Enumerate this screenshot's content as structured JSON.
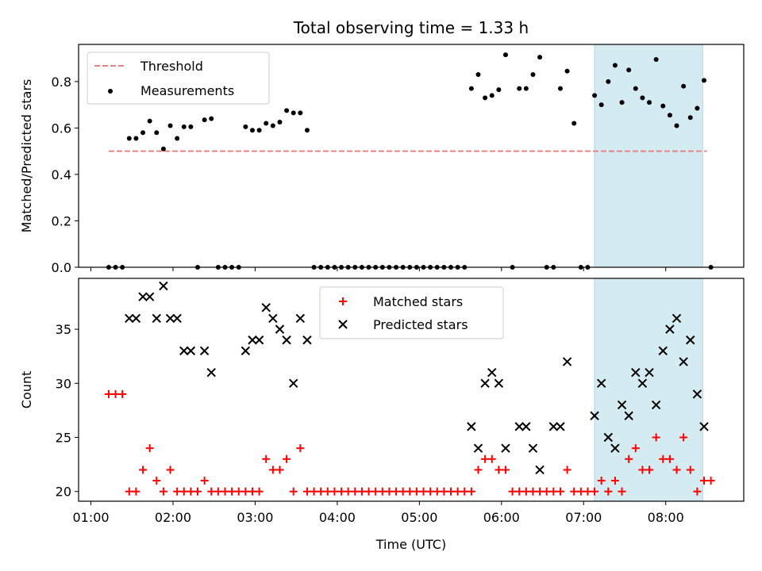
{
  "chart_data": [
    {
      "type": "scatter",
      "title": "Total observing time = 1.33 h",
      "xlabel": "",
      "ylabel": "Matched/Predicted stars",
      "xlim": [
        "00:51",
        "08:57"
      ],
      "ylim": [
        0,
        0.96
      ],
      "yticks": [
        "0.0",
        "0.2",
        "0.4",
        "0.6",
        "0.8"
      ],
      "ytick_values": [
        0,
        0.2,
        0.4,
        0.6,
        0.8
      ],
      "shaded_span": [
        "07:08",
        "08:27"
      ],
      "shade_color": "#d4ebf1",
      "legend": {
        "placement": "upper left",
        "entries": [
          "Threshold",
          "Measurements"
        ]
      },
      "series": [
        {
          "name": "Threshold",
          "style": "dashed-line",
          "color": "#f08080",
          "x": [
            "01:13",
            "08:30"
          ],
          "y": [
            0.5,
            0.5
          ]
        },
        {
          "name": "Measurements",
          "style": "dot",
          "color": "#000000",
          "x": [
            "01:13",
            "01:18",
            "01:23",
            "01:28",
            "01:33",
            "01:38",
            "01:43",
            "01:48",
            "01:53",
            "01:58",
            "02:03",
            "02:08",
            "02:13",
            "02:18",
            "02:23",
            "02:28",
            "02:33",
            "02:38",
            "02:43",
            "02:48",
            "02:53",
            "02:58",
            "03:03",
            "03:08",
            "03:13",
            "03:18",
            "03:23",
            "03:28",
            "03:33",
            "03:38",
            "03:43",
            "03:48",
            "03:53",
            "03:58",
            "04:03",
            "04:08",
            "04:13",
            "04:18",
            "04:23",
            "04:28",
            "04:33",
            "04:38",
            "04:43",
            "04:48",
            "04:53",
            "04:58",
            "05:03",
            "05:08",
            "05:13",
            "05:18",
            "05:23",
            "05:28",
            "05:33",
            "05:38",
            "05:43",
            "05:48",
            "05:53",
            "05:58",
            "06:03",
            "06:08",
            "06:13",
            "06:18",
            "06:23",
            "06:28",
            "06:33",
            "06:38",
            "06:43",
            "06:48",
            "06:53",
            "06:58",
            "07:03",
            "07:08",
            "07:13",
            "07:18",
            "07:23",
            "07:28",
            "07:33",
            "07:38",
            "07:43",
            "07:48",
            "07:53",
            "07:58",
            "08:03",
            "08:08",
            "08:13",
            "08:18",
            "08:23",
            "08:28",
            "08:33"
          ],
          "y": [
            0,
            0,
            0,
            0.555,
            0.555,
            0.58,
            0.63,
            0.58,
            0.51,
            0.61,
            0.555,
            0.605,
            0.605,
            0,
            0.635,
            0.64,
            0,
            0,
            0,
            0,
            0.605,
            0.59,
            0.59,
            0.62,
            0.61,
            0.625,
            0.675,
            0.665,
            0.665,
            0.59,
            0,
            0,
            0,
            0,
            0,
            0,
            0,
            0,
            0,
            0,
            0,
            0,
            0,
            0,
            0,
            0,
            0,
            0,
            0,
            0,
            0,
            0,
            0,
            0.77,
            0.83,
            0.73,
            0.74,
            0.765,
            0.915,
            0,
            0.77,
            0.77,
            0.83,
            0.905,
            0,
            0,
            0.77,
            0.845,
            0.62,
            0,
            0,
            0.74,
            0.7,
            0.8,
            0.87,
            0.71,
            0.85,
            0.77,
            0.73,
            0.71,
            0.895,
            0.695,
            0.655,
            0.61,
            0.78,
            0.645,
            0.685,
            0.805,
            0
          ]
        }
      ]
    },
    {
      "type": "scatter",
      "title": "",
      "xlabel": "Time (UTC)",
      "ylabel": "Count",
      "xlim": [
        "00:51",
        "08:57"
      ],
      "ylim": [
        19.1,
        39.7
      ],
      "yticks": [
        "20",
        "25",
        "30",
        "35"
      ],
      "ytick_values": [
        20,
        25,
        30,
        35
      ],
      "xticks": [
        "01:00",
        "02:00",
        "03:00",
        "04:00",
        "05:00",
        "06:00",
        "07:00",
        "08:00"
      ],
      "shaded_span": [
        "07:08",
        "08:27"
      ],
      "shade_color": "#d4ebf1",
      "legend": {
        "placement": "upper center",
        "entries": [
          "Matched stars",
          "Predicted stars"
        ]
      },
      "series": [
        {
          "name": "Matched stars",
          "style": "plus",
          "color": "#ff0000",
          "x": [
            "01:13",
            "01:18",
            "01:23",
            "01:28",
            "01:33",
            "01:38",
            "01:43",
            "01:48",
            "01:53",
            "01:58",
            "02:03",
            "02:08",
            "02:13",
            "02:18",
            "02:23",
            "02:28",
            "02:33",
            "02:38",
            "02:43",
            "02:48",
            "02:53",
            "02:58",
            "03:03",
            "03:08",
            "03:13",
            "03:18",
            "03:23",
            "03:28",
            "03:33",
            "03:38",
            "03:43",
            "03:48",
            "03:53",
            "03:58",
            "04:03",
            "04:08",
            "04:13",
            "04:18",
            "04:23",
            "04:28",
            "04:33",
            "04:38",
            "04:43",
            "04:48",
            "04:53",
            "04:58",
            "05:03",
            "05:08",
            "05:13",
            "05:18",
            "05:23",
            "05:28",
            "05:33",
            "05:38",
            "05:43",
            "05:48",
            "05:53",
            "05:58",
            "06:03",
            "06:08",
            "06:13",
            "06:18",
            "06:23",
            "06:28",
            "06:33",
            "06:38",
            "06:43",
            "06:48",
            "06:53",
            "06:58",
            "07:03",
            "07:08",
            "07:13",
            "07:18",
            "07:23",
            "07:28",
            "07:33",
            "07:38",
            "07:43",
            "07:48",
            "07:53",
            "07:58",
            "08:03",
            "08:08",
            "08:13",
            "08:18",
            "08:23",
            "08:28",
            "08:33"
          ],
          "y": [
            29,
            29,
            29,
            20,
            20,
            22,
            24,
            21,
            20,
            22,
            20,
            20,
            20,
            20,
            21,
            20,
            20,
            20,
            20,
            20,
            20,
            20,
            20,
            23,
            22,
            22,
            23,
            20,
            24,
            20,
            20,
            20,
            20,
            20,
            20,
            20,
            20,
            20,
            20,
            20,
            20,
            20,
            20,
            20,
            20,
            20,
            20,
            20,
            20,
            20,
            20,
            20,
            20,
            20,
            22,
            23,
            23,
            22,
            22,
            20,
            20,
            20,
            20,
            20,
            20,
            20,
            20,
            22,
            20,
            20,
            20,
            20,
            21,
            20,
            21,
            20,
            23,
            24,
            22,
            22,
            25,
            23,
            23,
            22,
            25,
            22,
            20,
            21,
            21
          ]
        },
        {
          "name": "Predicted stars",
          "style": "x",
          "color": "#000000",
          "x": [
            "01:28",
            "01:33",
            "01:38",
            "01:43",
            "01:48",
            "01:53",
            "01:58",
            "02:03",
            "02:08",
            "02:13",
            "02:23",
            "02:28",
            "02:53",
            "02:58",
            "03:03",
            "03:08",
            "03:13",
            "03:18",
            "03:23",
            "03:28",
            "03:33",
            "03:38",
            "05:38",
            "05:43",
            "05:48",
            "05:53",
            "05:58",
            "06:03",
            "06:13",
            "06:18",
            "06:23",
            "06:28",
            "06:38",
            "06:43",
            "06:48",
            "07:08",
            "07:13",
            "07:18",
            "07:23",
            "07:28",
            "07:33",
            "07:38",
            "07:43",
            "07:48",
            "07:53",
            "07:58",
            "08:03",
            "08:08",
            "08:13",
            "08:18",
            "08:23",
            "08:28"
          ],
          "y": [
            36,
            36,
            38,
            38,
            36,
            39,
            36,
            36,
            33,
            33,
            33,
            31,
            33,
            34,
            34,
            37,
            36,
            35,
            34,
            30,
            36,
            34,
            26,
            24,
            30,
            31,
            30,
            24,
            26,
            26,
            24,
            22,
            26,
            26,
            32,
            27,
            30,
            25,
            24,
            28,
            27,
            31,
            30,
            31,
            28,
            33,
            35,
            36,
            32,
            34,
            29,
            26
          ]
        }
      ]
    }
  ]
}
